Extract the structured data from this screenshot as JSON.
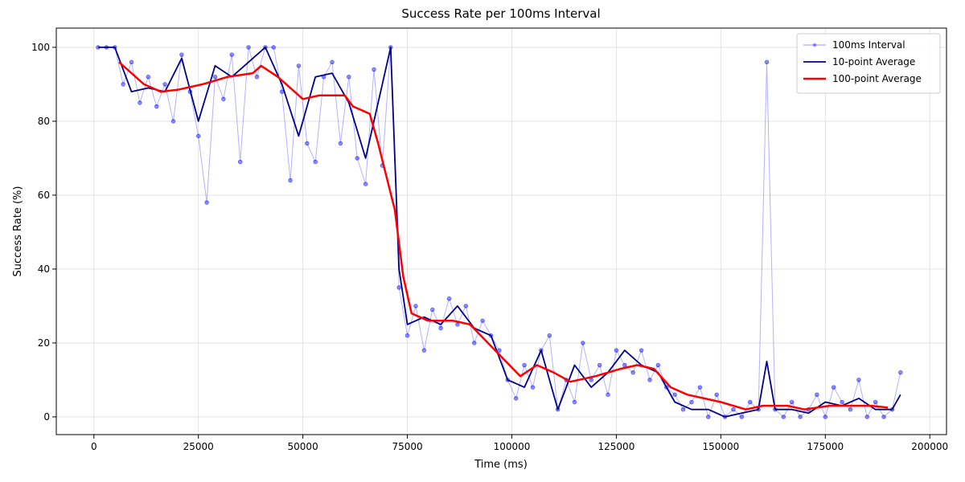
{
  "chart_data": {
    "type": "line",
    "title": "Success Rate per 100ms Interval",
    "x_label": "Time (ms)",
    "y_label": "Success Rate (%)",
    "xlim": [
      -9000,
      204000
    ],
    "ylim": [
      -4.8,
      105.2
    ],
    "xticks": [
      0,
      25000,
      50000,
      75000,
      100000,
      125000,
      150000,
      175000,
      200000
    ],
    "yticks": [
      0,
      20,
      40,
      60,
      80,
      100
    ],
    "grid": true,
    "legend": "upper right",
    "series": [
      {
        "name": "100ms Interval",
        "color": "#0000ff",
        "x": [
          1000,
          3000,
          5000,
          7000,
          9000,
          11000,
          13000,
          15000,
          17000,
          19000,
          21000,
          23000,
          25000,
          27000,
          29000,
          31000,
          33000,
          35000,
          37000,
          39000,
          41000,
          43000,
          45000,
          47000,
          49000,
          51000,
          53000,
          55000,
          57000,
          59000,
          61000,
          63000,
          65000,
          67000,
          69000,
          71000,
          73000,
          75000,
          77000,
          79000,
          81000,
          83000,
          85000,
          87000,
          89000,
          91000,
          93000,
          95000,
          97000,
          99000,
          101000,
          103000,
          105000,
          107000,
          109000,
          111000,
          113000,
          115000,
          117000,
          119000,
          121000,
          123000,
          125000,
          127000,
          129000,
          131000,
          133000,
          135000,
          137000,
          139000,
          141000,
          143000,
          145000,
          147000,
          149000,
          151000,
          153000,
          155000,
          157000,
          159000,
          161000,
          163000,
          165000,
          167000,
          169000,
          171000,
          173000,
          175000,
          177000,
          179000,
          181000,
          183000,
          185000,
          187000,
          189000,
          191000,
          193000
        ],
        "values": [
          100,
          100,
          100,
          90,
          96,
          85,
          92,
          84,
          90,
          80,
          98,
          88,
          76,
          58,
          92,
          86,
          98,
          69,
          100,
          92,
          100,
          100,
          88,
          64,
          95,
          74,
          69,
          92,
          96,
          74,
          92,
          70,
          63,
          94,
          68,
          100,
          35,
          22,
          30,
          18,
          29,
          24,
          32,
          25,
          30,
          20,
          26,
          22,
          18,
          10,
          5,
          14,
          8,
          18,
          22,
          2,
          10,
          4,
          20,
          10,
          14,
          6,
          18,
          14,
          12,
          18,
          10,
          14,
          8,
          6,
          2,
          4,
          8,
          0,
          6,
          0,
          2,
          0,
          4,
          2,
          96,
          2,
          0,
          4,
          0,
          2,
          6,
          0,
          8,
          4,
          2,
          10,
          0,
          4,
          0,
          2,
          12
        ]
      },
      {
        "name": "10-point Average",
        "color": "#00008b",
        "x": [
          1000,
          5000,
          9000,
          13000,
          17000,
          21000,
          25000,
          29000,
          33000,
          37000,
          41000,
          45000,
          49000,
          53000,
          57000,
          61000,
          65000,
          69000,
          71000,
          73000,
          75000,
          79000,
          83000,
          87000,
          91000,
          95000,
          99000,
          103000,
          107000,
          111000,
          115000,
          119000,
          123000,
          127000,
          131000,
          135000,
          139000,
          143000,
          147000,
          151000,
          155000,
          159000,
          161000,
          163000,
          167000,
          171000,
          175000,
          179000,
          183000,
          187000,
          191000,
          193000
        ],
        "values": [
          100,
          100,
          88,
          89,
          88,
          97,
          80,
          95,
          92,
          96,
          100,
          90,
          76,
          92,
          93,
          85,
          70,
          90,
          100,
          40,
          25,
          27,
          25,
          30,
          24,
          22,
          10,
          8,
          18,
          2,
          14,
          8,
          12,
          18,
          14,
          12,
          4,
          2,
          2,
          0,
          1,
          2,
          15,
          2,
          2,
          1,
          4,
          3,
          5,
          2,
          2,
          6
        ]
      },
      {
        "name": "100-point Average",
        "color": "#ff0000",
        "x": [
          6000,
          12000,
          16000,
          20000,
          26000,
          32000,
          38000,
          40000,
          44000,
          50000,
          54000,
          60000,
          62000,
          66000,
          68000,
          72000,
          74000,
          76000,
          80000,
          86000,
          90000,
          96000,
          102000,
          106000,
          110000,
          114000,
          120000,
          126000,
          130000,
          134000,
          138000,
          142000,
          146000,
          150000,
          156000,
          160000,
          166000,
          170000,
          176000,
          182000,
          186000,
          190000
        ],
        "values": [
          96,
          90,
          88,
          88.5,
          90,
          92,
          93,
          95,
          92,
          86,
          87,
          87,
          84,
          82,
          74,
          56,
          38,
          28,
          26,
          26,
          25,
          18,
          11,
          14,
          12,
          9.5,
          11,
          13,
          14,
          13,
          8,
          6,
          5,
          4,
          2,
          3,
          3,
          2,
          3,
          3,
          3,
          2.5
        ]
      }
    ]
  }
}
